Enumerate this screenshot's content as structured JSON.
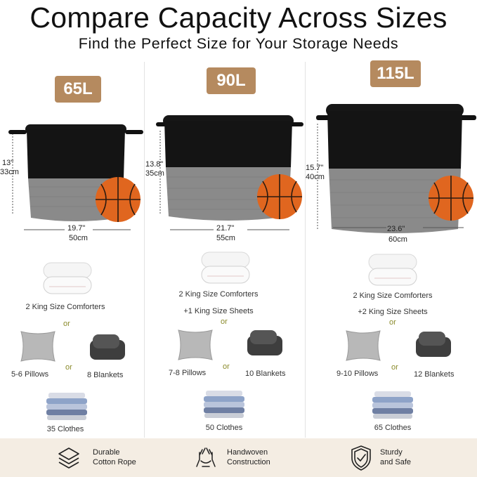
{
  "header": {
    "title": "Compare Capacity Across Sizes",
    "subtitle": "Find the Perfect Size for Your Storage Needs"
  },
  "columns": [
    {
      "size": "65L",
      "height_in": "13\"",
      "height_cm": "33cm",
      "width_in": "19.7\"",
      "width_cm": "50cm",
      "comforters": "2 King Size Comforters",
      "sheets": "",
      "or1": "or",
      "pillows": "5-6 Pillows",
      "or2": "or",
      "blankets": "8 Blankets",
      "clothes": "35 Clothes"
    },
    {
      "size": "90L",
      "height_in": "13.8\"",
      "height_cm": "35cm",
      "width_in": "21.7\"",
      "width_cm": "55cm",
      "comforters": "2 King Size Comforters",
      "sheets": "+1 King Size Sheets",
      "or1": "or",
      "pillows": "7-8 Pillows",
      "or2": "or",
      "blankets": "10 Blankets",
      "clothes": "50 Clothes"
    },
    {
      "size": "115L",
      "height_in": "15.7\"",
      "height_cm": "40cm",
      "width_in": "23.6\"",
      "width_cm": "60cm",
      "comforters": "2 King Size Comforters",
      "sheets": "+2 King Size Sheets",
      "or1": "or",
      "pillows": "9-10 Pillows",
      "or2": "or",
      "blankets": "12 Blankets",
      "clothes": "65 Clothes"
    }
  ],
  "footer": {
    "features": [
      {
        "line1": "Durable",
        "line2": "Cotton Rope",
        "icon": "layers-icon"
      },
      {
        "line1": "Handwoven",
        "line2": "Construction",
        "icon": "hands-icon"
      },
      {
        "line1": "Sturdy",
        "line2": "and Safe",
        "icon": "shield-check-icon"
      }
    ]
  },
  "colors": {
    "badge": "#b58a5f",
    "basket_top": "#141414",
    "basket_bottom": "#8a8a8a",
    "ball": "#e0661f",
    "footer_bg": "#f4ede3",
    "or_text": "#8a8a2a"
  }
}
